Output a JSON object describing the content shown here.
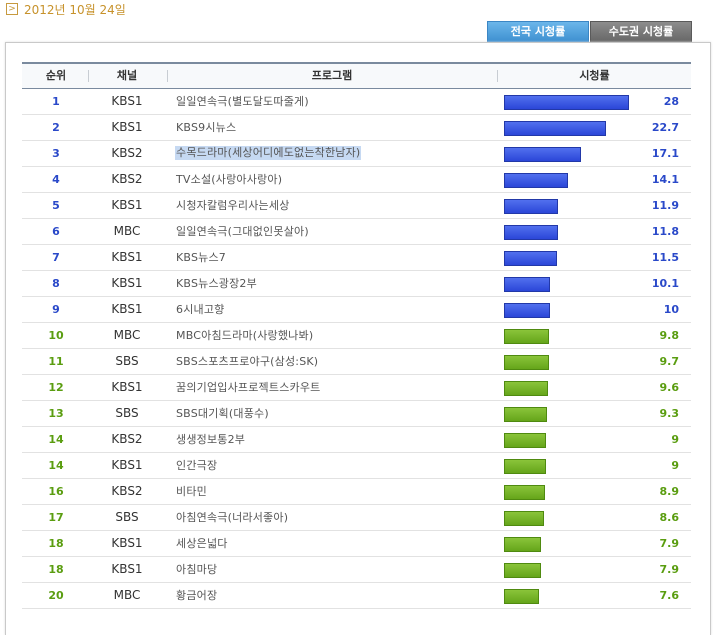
{
  "header": {
    "date": "2012년 10월 24일",
    "arrow_symbol": ">"
  },
  "tabs": [
    {
      "label": "전국 시청률",
      "active": true
    },
    {
      "label": "수도권 시청률",
      "active": false
    }
  ],
  "table": {
    "columns": [
      "순위",
      "채널",
      "프로그램",
      "시청률"
    ],
    "max_rating": 28,
    "rows": [
      {
        "rank": "1",
        "channel": "KBS1",
        "program": "일일연속극(별도달도따줄게)",
        "rating": "28",
        "color": "blue"
      },
      {
        "rank": "2",
        "channel": "KBS1",
        "program": "KBS9시뉴스",
        "rating": "22.7",
        "color": "blue"
      },
      {
        "rank": "3",
        "channel": "KBS2",
        "program": "수목드라마(세상어디에도없는착한남자)",
        "rating": "17.1",
        "color": "blue",
        "selected": true
      },
      {
        "rank": "4",
        "channel": "KBS2",
        "program": "TV소설(사랑아사랑아)",
        "rating": "14.1",
        "color": "blue"
      },
      {
        "rank": "5",
        "channel": "KBS1",
        "program": "시청자칼럼우리사는세상",
        "rating": "11.9",
        "color": "blue"
      },
      {
        "rank": "6",
        "channel": "MBC",
        "program": "일일연속극(그대없인못살아)",
        "rating": "11.8",
        "color": "blue"
      },
      {
        "rank": "7",
        "channel": "KBS1",
        "program": "KBS뉴스7",
        "rating": "11.5",
        "color": "blue"
      },
      {
        "rank": "8",
        "channel": "KBS1",
        "program": "KBS뉴스광장2부",
        "rating": "10.1",
        "color": "blue"
      },
      {
        "rank": "9",
        "channel": "KBS1",
        "program": "6시내고향",
        "rating": "10",
        "color": "blue"
      },
      {
        "rank": "10",
        "channel": "MBC",
        "program": "MBC아침드라마(사랑했나봐)",
        "rating": "9.8",
        "color": "green"
      },
      {
        "rank": "11",
        "channel": "SBS",
        "program": "SBS스포츠프로야구(삼성:SK)",
        "rating": "9.7",
        "color": "green"
      },
      {
        "rank": "12",
        "channel": "KBS1",
        "program": "꿈의기업입사프로젝트스카우트",
        "rating": "9.6",
        "color": "green"
      },
      {
        "rank": "13",
        "channel": "SBS",
        "program": "SBS대기획(대풍수)",
        "rating": "9.3",
        "color": "green"
      },
      {
        "rank": "14",
        "channel": "KBS2",
        "program": "생생정보통2부",
        "rating": "9",
        "color": "green"
      },
      {
        "rank": "14",
        "channel": "KBS1",
        "program": "인간극장",
        "rating": "9",
        "color": "green"
      },
      {
        "rank": "16",
        "channel": "KBS2",
        "program": "비타민",
        "rating": "8.9",
        "color": "green"
      },
      {
        "rank": "17",
        "channel": "SBS",
        "program": "아침연속극(너라서좋아)",
        "rating": "8.6",
        "color": "green"
      },
      {
        "rank": "18",
        "channel": "KBS1",
        "program": "세상은넓다",
        "rating": "7.9",
        "color": "green"
      },
      {
        "rank": "18",
        "channel": "KBS1",
        "program": "아침마당",
        "rating": "7.9",
        "color": "green"
      },
      {
        "rank": "20",
        "channel": "MBC",
        "program": "황금어장",
        "rating": "7.6",
        "color": "green"
      }
    ]
  }
}
